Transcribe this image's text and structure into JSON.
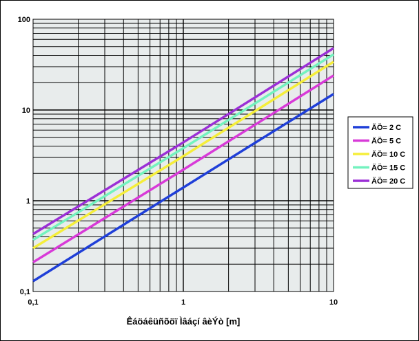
{
  "chart_data": {
    "type": "line",
    "xlabel": "Êáöáêüñõöï Ìâáçí âèÝò [m]",
    "ylabel": "",
    "x_scale": "log",
    "y_scale": "log",
    "xlim": [
      0.1,
      10
    ],
    "ylim": [
      0.1,
      100
    ],
    "x_ticks": [
      "0,1",
      "1",
      "10"
    ],
    "y_ticks": [
      "0,1",
      "1",
      "10",
      "100"
    ],
    "grid": true,
    "legend_position": "right",
    "series": [
      {
        "name": "ÄÖ= 2 C",
        "color": "#1f3fd8",
        "x": [
          0.1,
          1,
          10
        ],
        "y": [
          0.13,
          1.4,
          15
        ]
      },
      {
        "name": "ÄÖ= 5 C",
        "color": "#d83ad8",
        "x": [
          0.1,
          1,
          10
        ],
        "y": [
          0.21,
          2.2,
          24
        ]
      },
      {
        "name": "ÄÖ= 10 C",
        "color": "#f5ee3a",
        "x": [
          0.1,
          1,
          10
        ],
        "y": [
          0.3,
          3.1,
          34
        ]
      },
      {
        "name": "ÄÖ= 15 C",
        "color": "#73f2bf",
        "x": [
          0.1,
          1,
          10
        ],
        "y": [
          0.37,
          3.8,
          41
        ]
      },
      {
        "name": "ÄÖ= 20 C",
        "color": "#9b2fd6",
        "x": [
          0.1,
          1,
          10
        ],
        "y": [
          0.43,
          4.4,
          48
        ]
      }
    ]
  }
}
